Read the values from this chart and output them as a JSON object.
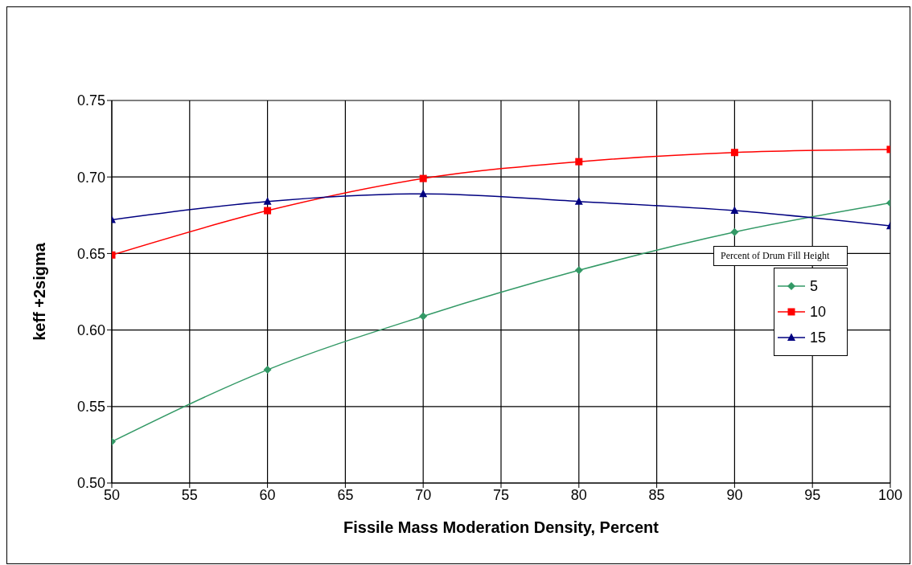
{
  "chart_data": {
    "type": "line",
    "xlabel": "Fissile Mass Moderation Density, Percent",
    "ylabel": "keff +2sigma",
    "legend_title": "Percent of Drum Fill Height",
    "x": [
      50,
      60,
      70,
      80,
      90,
      100
    ],
    "series": [
      {
        "name": "5",
        "color": "#339966",
        "marker": "diamond",
        "values": [
          0.527,
          0.574,
          0.609,
          0.639,
          0.664,
          0.683
        ]
      },
      {
        "name": "10",
        "color": "#ff0000",
        "marker": "square",
        "values": [
          0.649,
          0.678,
          0.699,
          0.71,
          0.716,
          0.718
        ]
      },
      {
        "name": "15",
        "color": "#000080",
        "marker": "triangle",
        "values": [
          0.672,
          0.684,
          0.689,
          0.684,
          0.678,
          0.668
        ]
      }
    ],
    "xlim": [
      50,
      100
    ],
    "xticks": [
      50,
      55,
      60,
      65,
      70,
      75,
      80,
      85,
      90,
      95,
      100
    ],
    "ylim": [
      0.5,
      0.75
    ],
    "yticks": [
      {
        "value": 0.5,
        "label": "0.50"
      },
      {
        "value": 0.55,
        "label": "0.55"
      },
      {
        "value": 0.6,
        "label": "0.60"
      },
      {
        "value": 0.65,
        "label": "0.65"
      },
      {
        "value": 0.7,
        "label": "0.70"
      },
      {
        "value": 0.75,
        "label": "0.75"
      }
    ],
    "grid": true,
    "legend": "right",
    "line_style": "solid"
  }
}
